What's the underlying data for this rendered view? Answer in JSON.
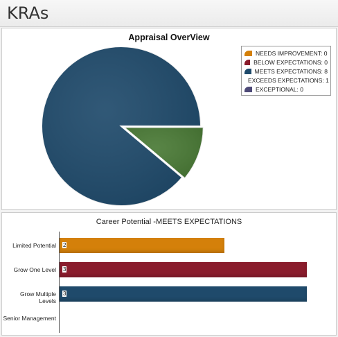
{
  "header": {
    "title": "KRAs"
  },
  "chart_data": [
    {
      "type": "pie",
      "title": "Appraisal OverView",
      "legend_position": "top-right",
      "slices": [
        {
          "label": "NEEDS IMPROVEMENT",
          "value": 0,
          "color": "#d4800a"
        },
        {
          "label": "BELOW EXPECTATIONS",
          "value": 0,
          "color": "#8a1c2c"
        },
        {
          "label": "MEETS EXPECTATIONS",
          "value": 8,
          "color": "#1f4a6b"
        },
        {
          "label": "EXCEEDS EXPECTATIONS",
          "value": 1,
          "color": "#4a7a36"
        },
        {
          "label": "EXCEPTIONAL",
          "value": 0,
          "color": "#4e4a78"
        }
      ],
      "legend_entries": [
        "NEEDS IMPROVEMENT: 0",
        "BELOW EXPECTATIONS: 0",
        "MEETS EXPECTATIONS: 8",
        "EXCEEDS EXPECTATIONS: 1",
        "EXCEPTIONAL: 0"
      ]
    },
    {
      "type": "bar",
      "orientation": "horizontal",
      "title": "Career Potential -MEETS EXPECTATIONS",
      "categories": [
        "Limited Potential",
        "Grow One Level",
        "Grow Multiple Levels",
        "Senior Management"
      ],
      "values": [
        2,
        3,
        3,
        0
      ],
      "value_labels": [
        "2",
        "3",
        "3",
        ""
      ],
      "colors": [
        "#d4800a",
        "#8a1c2c",
        "#1f4a6b",
        "#4e4a78"
      ],
      "xlim": [
        0,
        3
      ]
    }
  ]
}
